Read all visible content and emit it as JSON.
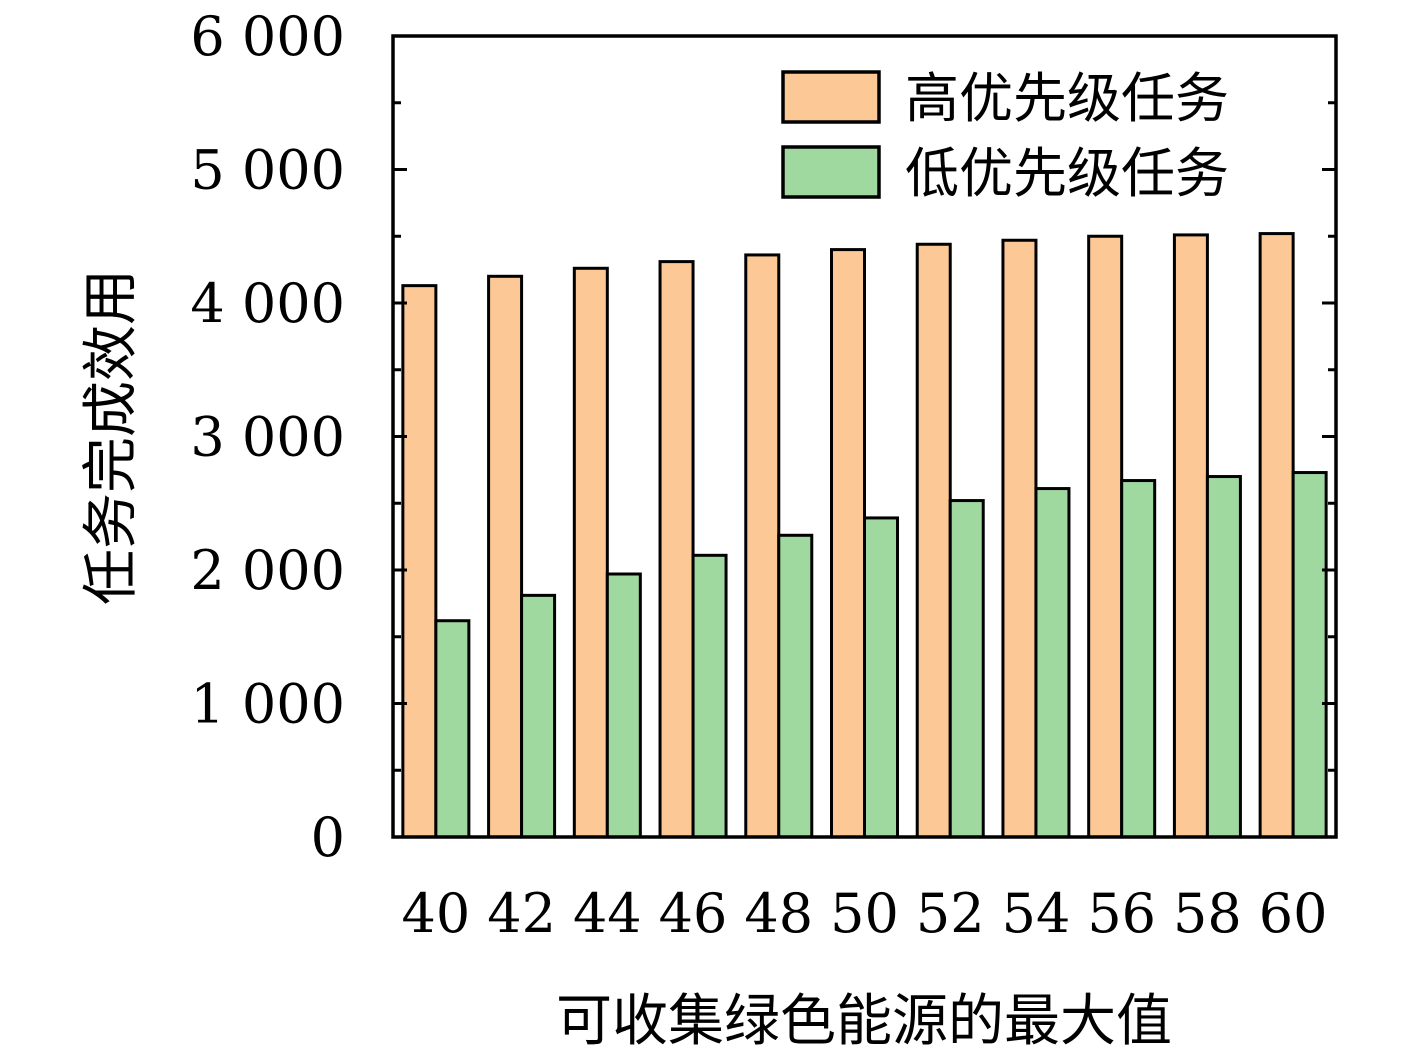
{
  "chart_data": {
    "type": "bar",
    "xlabel": "可收集绿色能源的最大值",
    "ylabel": "任务完成效用",
    "ylim": [
      0,
      6000
    ],
    "yticks": [
      0,
      1000,
      2000,
      3000,
      4000,
      5000,
      6000
    ],
    "ytick_labels": [
      "0",
      "1 000",
      "2 000",
      "3 000",
      "4 000",
      "5 000",
      "6 000"
    ],
    "categories": [
      "40",
      "42",
      "44",
      "46",
      "48",
      "50",
      "52",
      "54",
      "56",
      "58",
      "60"
    ],
    "series": [
      {
        "name": "高优先级任务",
        "color": "#fcc896",
        "values": [
          4130,
          4200,
          4260,
          4310,
          4360,
          4400,
          4440,
          4470,
          4500,
          4510,
          4520
        ]
      },
      {
        "name": "低优先级任务",
        "color": "#a0d9a0",
        "values": [
          1620,
          1810,
          1970,
          2110,
          2260,
          2390,
          2520,
          2610,
          2670,
          2700,
          2730
        ]
      }
    ],
    "legend_position": "top-right",
    "grid": false
  }
}
